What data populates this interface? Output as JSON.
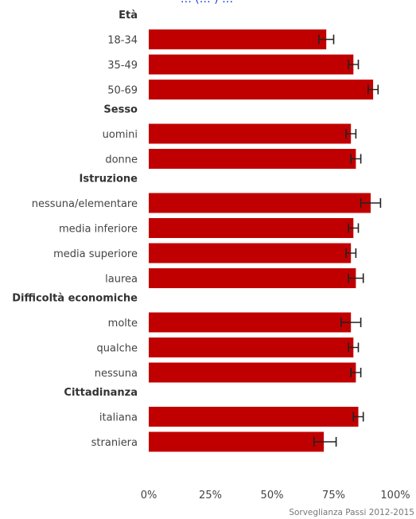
{
  "chart_data": {
    "type": "bar",
    "orientation": "horizontal",
    "title_fragment": "… (… ) …",
    "groups": [
      {
        "label": "Età",
        "items": [
          {
            "category": "18-34",
            "value": 72,
            "ci": [
              69,
              75
            ]
          },
          {
            "category": "35-49",
            "value": 83,
            "ci": [
              81,
              85
            ]
          },
          {
            "category": "50-69",
            "value": 91,
            "ci": [
              89,
              93
            ]
          }
        ]
      },
      {
        "label": "Sesso",
        "items": [
          {
            "category": "uomini",
            "value": 82,
            "ci": [
              80,
              84
            ]
          },
          {
            "category": "donne",
            "value": 84,
            "ci": [
              82,
              86
            ]
          }
        ]
      },
      {
        "label": "Istruzione",
        "items": [
          {
            "category": "nessuna/elementare",
            "value": 90,
            "ci": [
              86,
              94
            ]
          },
          {
            "category": "media inferiore",
            "value": 83,
            "ci": [
              81,
              85
            ]
          },
          {
            "category": "media superiore",
            "value": 82,
            "ci": [
              80,
              84
            ]
          },
          {
            "category": "laurea",
            "value": 84,
            "ci": [
              81,
              87
            ]
          }
        ]
      },
      {
        "label": "Difficoltà economiche",
        "items": [
          {
            "category": "molte",
            "value": 82,
            "ci": [
              78,
              86
            ]
          },
          {
            "category": "qualche",
            "value": 83,
            "ci": [
              81,
              85
            ]
          },
          {
            "category": "nessuna",
            "value": 84,
            "ci": [
              82,
              86
            ]
          }
        ]
      },
      {
        "label": "Cittadinanza",
        "items": [
          {
            "category": "italiana",
            "value": 85,
            "ci": [
              83,
              87
            ]
          },
          {
            "category": "straniera",
            "value": 71,
            "ci": [
              67,
              76
            ]
          }
        ]
      }
    ],
    "x_ticks": [
      "0%",
      "25%",
      "50%",
      "75%",
      "100%"
    ],
    "xlim": [
      0,
      100
    ],
    "bar_color": "#c00000",
    "error_bar_color": "#222222",
    "grid": false,
    "source": "Sorveglianza Passi 2012-2015"
  }
}
